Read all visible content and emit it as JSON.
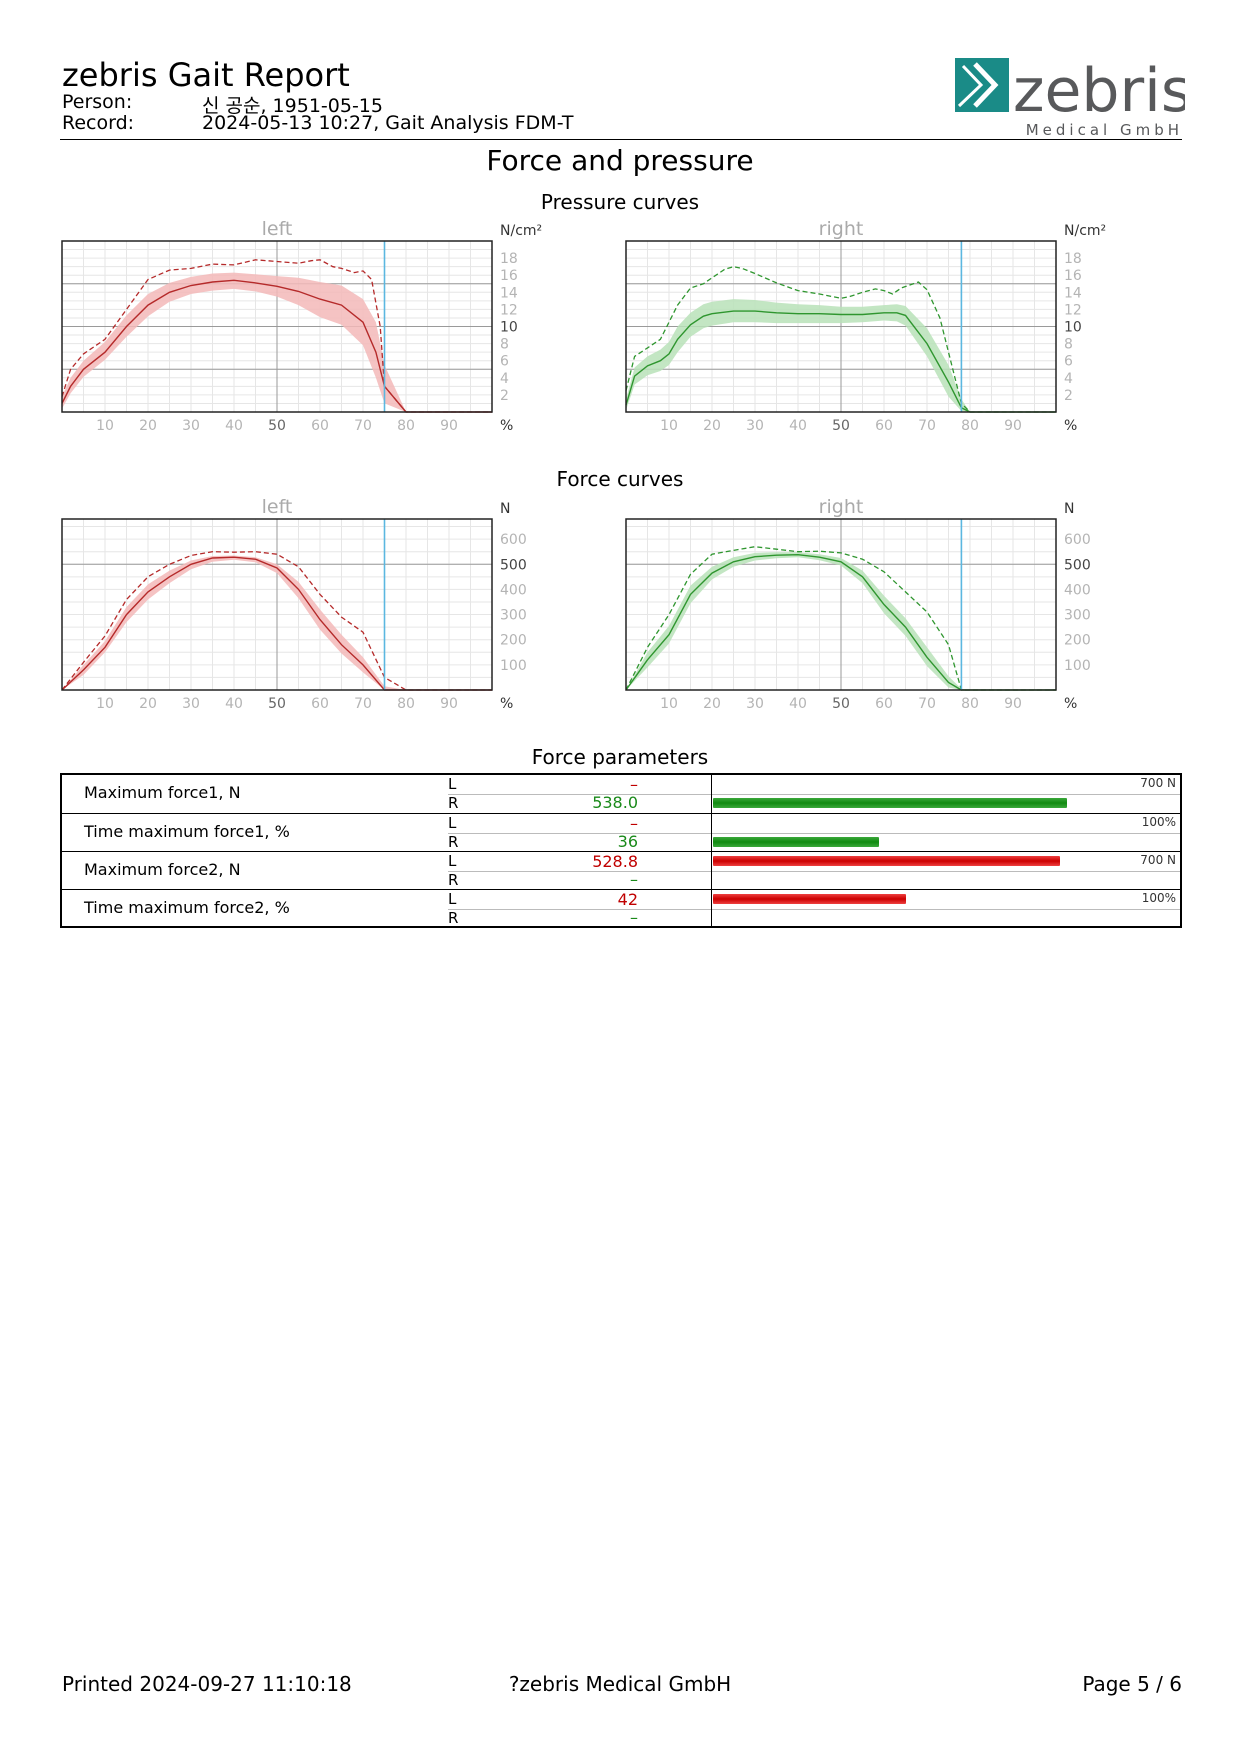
{
  "header": {
    "title": "zebris Gait Report",
    "person_label": "Person:",
    "person_value": "신 공순, 1951-05-15",
    "record_label": "Record:",
    "record_value": "2024-05-13 10:27, Gait Analysis FDM-T",
    "logo_text": "zebris",
    "logo_subtext": "Medical GmbH"
  },
  "page_title": "Force and pressure",
  "sections": {
    "pressure": "Pressure curves",
    "force": "Force curves",
    "params": "Force parameters"
  },
  "colors": {
    "left_line": "#b52a2a",
    "left_band": "#f3b8b8",
    "right_line": "#2f962f",
    "right_band": "#b9e2b9",
    "toe_off_marker": "#5bb7e0"
  },
  "chart_data": [
    {
      "type": "line",
      "id": "pressure-left",
      "title": "left",
      "ylabel": "N/cm²",
      "xlabel": "%",
      "xlim": [
        0,
        100
      ],
      "ylim": [
        0,
        20
      ],
      "xticks": [
        10,
        20,
        30,
        40,
        50,
        60,
        70,
        80,
        90
      ],
      "yticks": [
        2,
        4,
        6,
        8,
        10,
        12,
        14,
        16,
        18
      ],
      "grid": true,
      "toe_off": 75,
      "mean": {
        "x": [
          0,
          2,
          5,
          10,
          15,
          20,
          25,
          30,
          35,
          40,
          45,
          50,
          55,
          60,
          65,
          70,
          73,
          75,
          80,
          100
        ],
        "y": [
          1,
          3,
          5,
          7,
          10,
          12.5,
          14,
          14.8,
          15.2,
          15.4,
          15.1,
          14.7,
          14.1,
          13.2,
          12.5,
          10.5,
          7,
          3,
          0,
          0
        ]
      },
      "band_upper": [
        1.8,
        4,
        6,
        8.2,
        11.3,
        13.8,
        15.1,
        15.8,
        16.2,
        16.3,
        16.1,
        15.9,
        15.7,
        15.2,
        14.8,
        13.2,
        10.5,
        5.5,
        0,
        0
      ],
      "band_lower": [
        0.4,
        2.2,
        4.1,
        6.1,
        8.8,
        11.2,
        12.9,
        13.8,
        14.2,
        14.4,
        14.1,
        13.5,
        12.5,
        11.1,
        10.2,
        7.8,
        4,
        1,
        0,
        0
      ],
      "max": {
        "x": [
          0,
          2,
          5,
          10,
          15,
          20,
          25,
          30,
          35,
          40,
          45,
          50,
          55,
          58,
          60,
          63,
          65,
          68,
          70,
          72,
          74,
          75,
          80,
          100
        ],
        "y": [
          1.8,
          5,
          6.8,
          8.5,
          12,
          15.5,
          16.6,
          16.8,
          17.3,
          17.2,
          17.8,
          17.6,
          17.4,
          17.7,
          17.8,
          17,
          16.8,
          16.3,
          16.5,
          15.5,
          10,
          3,
          0,
          0
        ]
      }
    },
    {
      "type": "line",
      "id": "pressure-right",
      "title": "right",
      "ylabel": "N/cm²",
      "xlabel": "%",
      "xlim": [
        0,
        100
      ],
      "ylim": [
        0,
        20
      ],
      "xticks": [
        10,
        20,
        30,
        40,
        50,
        60,
        70,
        80,
        90
      ],
      "yticks": [
        2,
        4,
        6,
        8,
        10,
        12,
        14,
        16,
        18
      ],
      "grid": true,
      "toe_off": 78,
      "mean": {
        "x": [
          0,
          2,
          5,
          8,
          10,
          12,
          15,
          18,
          20,
          25,
          30,
          35,
          40,
          45,
          50,
          55,
          60,
          63,
          65,
          70,
          75,
          78,
          80,
          100
        ],
        "y": [
          0.8,
          4.2,
          5.4,
          6,
          6.8,
          8.5,
          10.2,
          11.2,
          11.5,
          11.8,
          11.8,
          11.6,
          11.5,
          11.5,
          11.4,
          11.4,
          11.6,
          11.6,
          11.3,
          8,
          3.5,
          0.5,
          0,
          0
        ]
      },
      "band_upper": [
        1.5,
        5.2,
        6.5,
        7.3,
        8.2,
        10,
        11.6,
        12.6,
        12.9,
        13.2,
        13.1,
        12.8,
        12.6,
        12.5,
        12.3,
        12.3,
        12.5,
        12.6,
        12.4,
        9.8,
        5.5,
        1.5,
        0,
        0
      ],
      "band_lower": [
        0.2,
        3.2,
        4.3,
        4.8,
        5.5,
        7,
        8.8,
        9.8,
        10.1,
        10.5,
        10.5,
        10.4,
        10.4,
        10.4,
        10.4,
        10.5,
        10.7,
        10.6,
        10.1,
        6.5,
        1.8,
        0.1,
        0,
        0
      ],
      "max": {
        "x": [
          0,
          2,
          5,
          8,
          10,
          12,
          15,
          18,
          20,
          23,
          25,
          27,
          30,
          35,
          40,
          45,
          50,
          52,
          55,
          58,
          60,
          62,
          64,
          68,
          70,
          73,
          75,
          78,
          80,
          100
        ],
        "y": [
          2.5,
          6.5,
          7.5,
          8.5,
          10.5,
          12.5,
          14.5,
          15,
          15.7,
          16.7,
          17,
          16.8,
          16.2,
          15.1,
          14.2,
          13.8,
          13.3,
          13.5,
          14,
          14.4,
          14.2,
          13.8,
          14.5,
          15.2,
          14.3,
          11,
          7,
          1,
          0,
          0
        ]
      }
    },
    {
      "type": "line",
      "id": "force-left",
      "title": "left",
      "ylabel": "N",
      "xlabel": "%",
      "xlim": [
        0,
        100
      ],
      "ylim": [
        0,
        680
      ],
      "xticks": [
        10,
        20,
        30,
        40,
        50,
        60,
        70,
        80,
        90
      ],
      "yticks": [
        100,
        200,
        300,
        400,
        500,
        600
      ],
      "grid": true,
      "toe_off": 75,
      "mean": {
        "x": [
          0,
          5,
          10,
          15,
          20,
          25,
          30,
          35,
          40,
          45,
          50,
          55,
          60,
          65,
          70,
          75,
          80,
          100
        ],
        "y": [
          0,
          80,
          170,
          300,
          390,
          450,
          500,
          525,
          528,
          520,
          485,
          400,
          280,
          180,
          100,
          0,
          0,
          0
        ]
      },
      "band_upper": [
        0,
        100,
        195,
        330,
        420,
        475,
        515,
        533,
        535,
        528,
        500,
        430,
        320,
        220,
        130,
        15,
        0,
        0
      ],
      "band_lower": [
        0,
        60,
        150,
        270,
        360,
        425,
        480,
        510,
        518,
        508,
        465,
        365,
        240,
        145,
        70,
        0,
        0,
        0
      ],
      "max": {
        "x": [
          0,
          5,
          10,
          15,
          20,
          25,
          30,
          35,
          40,
          45,
          50,
          55,
          60,
          65,
          70,
          75,
          80,
          100
        ],
        "y": [
          0,
          110,
          215,
          360,
          450,
          500,
          535,
          550,
          548,
          550,
          540,
          490,
          380,
          290,
          230,
          50,
          0,
          0
        ]
      }
    },
    {
      "type": "line",
      "id": "force-right",
      "title": "right",
      "ylabel": "N",
      "xlabel": "%",
      "xlim": [
        0,
        100
      ],
      "ylim": [
        0,
        680
      ],
      "xticks": [
        10,
        20,
        30,
        40,
        50,
        60,
        70,
        80,
        90
      ],
      "yticks": [
        100,
        200,
        300,
        400,
        500,
        600
      ],
      "grid": true,
      "toe_off": 78,
      "mean": {
        "x": [
          0,
          5,
          10,
          15,
          20,
          25,
          30,
          35,
          40,
          45,
          50,
          55,
          60,
          65,
          70,
          75,
          78,
          80,
          100
        ],
        "y": [
          0,
          120,
          220,
          380,
          465,
          510,
          530,
          536,
          538,
          528,
          510,
          450,
          340,
          250,
          130,
          30,
          0,
          0,
          0
        ]
      },
      "band_upper": [
        0,
        150,
        255,
        415,
        490,
        528,
        545,
        548,
        548,
        540,
        525,
        475,
        375,
        285,
        170,
        55,
        5,
        0,
        0
      ],
      "band_lower": [
        0,
        90,
        185,
        345,
        440,
        490,
        515,
        524,
        528,
        516,
        495,
        425,
        305,
        215,
        95,
        10,
        0,
        0,
        0
      ],
      "max": {
        "x": [
          0,
          5,
          10,
          15,
          20,
          25,
          30,
          35,
          40,
          45,
          50,
          55,
          60,
          65,
          70,
          75,
          78,
          80,
          100
        ],
        "y": [
          0,
          170,
          300,
          460,
          540,
          555,
          570,
          560,
          550,
          552,
          545,
          520,
          470,
          390,
          310,
          180,
          0,
          0,
          0
        ]
      }
    }
  ],
  "force_parameters": {
    "rows": [
      {
        "label": "Maximum force1, N",
        "scale": "700 N",
        "L": "–",
        "R": "538.0",
        "bar_side": "R",
        "bar_fraction": 0.7686
      },
      {
        "label": "Time maximum force1, %",
        "scale": "100%",
        "L": "–",
        "R": "36",
        "bar_side": "R",
        "bar_fraction": 0.36
      },
      {
        "label": "Maximum force2, N",
        "scale": "700 N",
        "L": "528.8",
        "R": "–",
        "bar_side": "L",
        "bar_fraction": 0.7554
      },
      {
        "label": "Time maximum force2, %",
        "scale": "100%",
        "L": "42",
        "R": "–",
        "bar_side": "L",
        "bar_fraction": 0.42
      }
    ],
    "L_label": "L",
    "R_label": "R"
  },
  "footer": {
    "printed": "Printed  2024-09-27 11:10:18",
    "company": "?zebris Medical GmbH",
    "page": "Page  5 / 6"
  }
}
